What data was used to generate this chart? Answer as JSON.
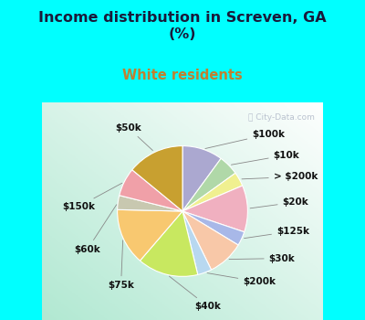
{
  "title": "Income distribution in Screven, GA\n(%)",
  "subtitle": "White residents",
  "background_cyan": "#00FFFF",
  "subtitle_color": "#c08030",
  "title_color": "#1a1a3a",
  "watermark": "ⓘ City-Data.com",
  "slices": [
    {
      "label": "$100k",
      "value": 10.0,
      "color": "#aba8d0"
    },
    {
      "label": "$10k",
      "value": 5.0,
      "color": "#b0d8a8"
    },
    {
      "label": "> $200k",
      "value": 3.5,
      "color": "#f0f090"
    },
    {
      "label": "$20k",
      "value": 11.5,
      "color": "#f0b0c0"
    },
    {
      "label": "$125k",
      "value": 3.5,
      "color": "#a8b8e8"
    },
    {
      "label": "$30k",
      "value": 9.0,
      "color": "#f8c8a8"
    },
    {
      "label": "$200k",
      "value": 3.5,
      "color": "#b8d8f0"
    },
    {
      "label": "$40k",
      "value": 15.0,
      "color": "#c8e860"
    },
    {
      "label": "$75k",
      "value": 14.0,
      "color": "#f8c870"
    },
    {
      "label": "$60k",
      "value": 3.5,
      "color": "#c8c8b0"
    },
    {
      "label": "$150k",
      "value": 7.0,
      "color": "#f0a0a8"
    },
    {
      "label": "$50k",
      "value": 14.0,
      "color": "#c8a030"
    }
  ],
  "label_fontsize": 7.5,
  "title_fontsize": 11.5,
  "subtitle_fontsize": 10.5
}
